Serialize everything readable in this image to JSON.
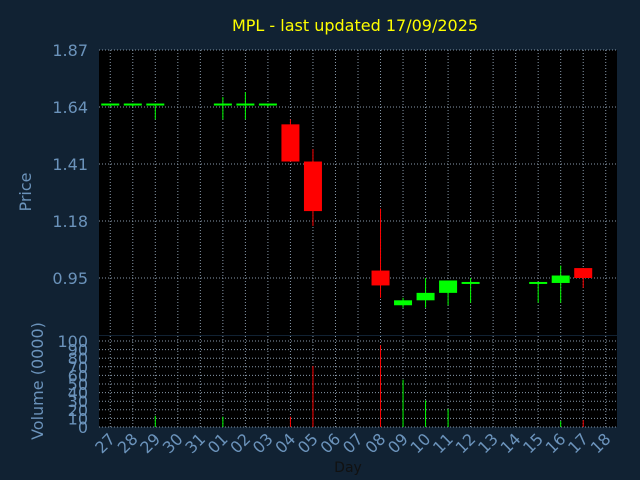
{
  "chart_data": [
    {
      "type": "candlestick",
      "title": "MPL - last updated 17/09/2025",
      "ylabel": "Price",
      "ylim": [
        0.72,
        1.87
      ],
      "yticks": [
        "0.95",
        "1.18",
        "1.41",
        "1.64",
        "1.87"
      ],
      "grid": true,
      "categories": [
        "27",
        "28",
        "29",
        "30",
        "31",
        "01",
        "02",
        "03",
        "04",
        "05",
        "06",
        "07",
        "08",
        "09",
        "10",
        "11",
        "12",
        "13",
        "14",
        "15",
        "16",
        "17",
        "18"
      ],
      "candles": [
        {
          "day": "27",
          "open": 1.65,
          "high": 1.65,
          "low": 1.64,
          "close": 1.65
        },
        {
          "day": "28",
          "open": 1.65,
          "high": 1.65,
          "low": 1.64,
          "close": 1.65
        },
        {
          "day": "29",
          "open": 1.65,
          "high": 1.65,
          "low": 1.59,
          "close": 1.65
        },
        {
          "day": "01",
          "open": 1.65,
          "high": 1.68,
          "low": 1.59,
          "close": 1.65
        },
        {
          "day": "02",
          "open": 1.65,
          "high": 1.7,
          "low": 1.59,
          "close": 1.65
        },
        {
          "day": "03",
          "open": 1.65,
          "high": 1.65,
          "low": 1.64,
          "close": 1.65
        },
        {
          "day": "04",
          "open": 1.57,
          "high": 1.59,
          "low": 1.42,
          "close": 1.42
        },
        {
          "day": "05",
          "open": 1.42,
          "high": 1.47,
          "low": 1.16,
          "close": 1.22
        },
        {
          "day": "08",
          "open": 0.98,
          "high": 1.23,
          "low": 0.87,
          "close": 0.92
        },
        {
          "day": "09",
          "open": 0.84,
          "high": 0.87,
          "low": 0.83,
          "close": 0.86
        },
        {
          "day": "10",
          "open": 0.86,
          "high": 0.95,
          "low": 0.83,
          "close": 0.89
        },
        {
          "day": "11",
          "open": 0.89,
          "high": 0.93,
          "low": 0.84,
          "close": 0.94
        },
        {
          "day": "12",
          "open": 0.93,
          "high": 0.95,
          "low": 0.85,
          "close": 0.93
        },
        {
          "day": "15",
          "open": 0.93,
          "high": 0.93,
          "low": 0.85,
          "close": 0.93
        },
        {
          "day": "16",
          "open": 0.93,
          "high": 1.0,
          "low": 0.85,
          "close": 0.96
        },
        {
          "day": "17",
          "open": 0.99,
          "high": 0.99,
          "low": 0.91,
          "close": 0.95
        }
      ],
      "colors": {
        "up": "#00ff00",
        "down": "#ff0000",
        "title": "#ffff00",
        "axis_text": "#6b93bb",
        "grid": "#8899aa",
        "background": "#112233",
        "plot": "#000000"
      }
    },
    {
      "type": "bar",
      "ylabel": "Volume (0000)",
      "xlabel": "Day",
      "ylim": [
        0,
        100
      ],
      "yticks": [
        "0",
        "10",
        "20",
        "30",
        "40",
        "50",
        "60",
        "70",
        "80",
        "90",
        "100"
      ],
      "categories": [
        "27",
        "28",
        "29",
        "30",
        "31",
        "01",
        "02",
        "03",
        "04",
        "05",
        "06",
        "07",
        "08",
        "09",
        "10",
        "11",
        "12",
        "13",
        "14",
        "15",
        "16",
        "17",
        "18"
      ],
      "bars": [
        {
          "day": "29",
          "value": 13,
          "direction": "up"
        },
        {
          "day": "01",
          "value": 12,
          "direction": "up"
        },
        {
          "day": "04",
          "value": 12,
          "direction": "down"
        },
        {
          "day": "05",
          "value": 71,
          "direction": "down"
        },
        {
          "day": "08",
          "value": 95,
          "direction": "down"
        },
        {
          "day": "09",
          "value": 55,
          "direction": "up"
        },
        {
          "day": "10",
          "value": 31,
          "direction": "up"
        },
        {
          "day": "11",
          "value": 21,
          "direction": "up"
        },
        {
          "day": "16",
          "value": 7,
          "direction": "up"
        },
        {
          "day": "17",
          "value": 8,
          "direction": "down"
        }
      ]
    }
  ]
}
